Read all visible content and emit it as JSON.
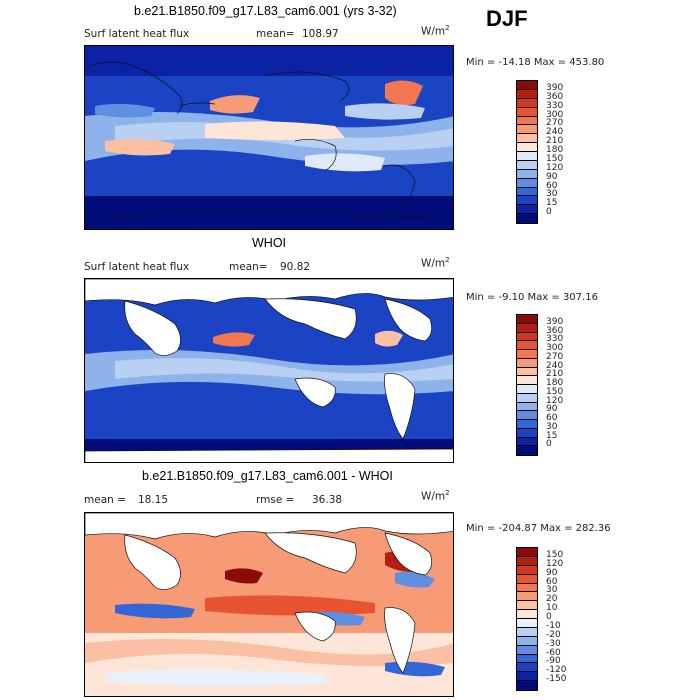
{
  "season": "DJF",
  "panels": [
    {
      "title": "b.e21.B1850.f09_g17.L83_cam6.001 (yrs 3-32)",
      "left_label": "Surf latent heat flux",
      "stat_label": "mean=",
      "stat_value": "108.97",
      "unit": "W/m",
      "minmax": "Min = -14.18 Max = 453.80",
      "colorbar_levels": [
        "390",
        "360",
        "330",
        "300",
        "270",
        "240",
        "210",
        "180",
        "150",
        "120",
        "90",
        "60",
        "30",
        "15",
        "0"
      ],
      "colorbar_colors": [
        "#8b0a0a",
        "#b41e12",
        "#d2361e",
        "#e8542f",
        "#f27650",
        "#f79a76",
        "#fbc0a3",
        "#fde6d8",
        "#dfe9f8",
        "#b8d0f2",
        "#8eb2ea",
        "#5f8fe0",
        "#3366d6",
        "#1a44c4",
        "#0a22a3",
        "#000c7a"
      ]
    },
    {
      "title": "WHOI",
      "left_label": "Surf latent heat flux",
      "stat_label": "mean=",
      "stat_value": "90.82",
      "unit": "W/m",
      "minmax": "Min = -9.10 Max = 307.16",
      "colorbar_levels": [
        "390",
        "360",
        "330",
        "300",
        "270",
        "240",
        "210",
        "180",
        "150",
        "120",
        "90",
        "60",
        "30",
        "15",
        "0"
      ],
      "colorbar_colors": [
        "#8b0a0a",
        "#b41e12",
        "#d2361e",
        "#e8542f",
        "#f27650",
        "#f79a76",
        "#fbc0a3",
        "#fde6d8",
        "#dfe9f8",
        "#b8d0f2",
        "#8eb2ea",
        "#5f8fe0",
        "#3366d6",
        "#1a44c4",
        "#0a22a3",
        "#000c7a"
      ]
    },
    {
      "title": "b.e21.B1850.f09_g17.L83_cam6.001 - WHOI",
      "left_label": "mean =",
      "stat_label": "rmse =",
      "left_value": "18.15",
      "stat_value": "36.38",
      "unit": "W/m",
      "minmax": "Min = -204.87 Max = 282.36",
      "colorbar_levels": [
        "150",
        "120",
        "90",
        "60",
        "30",
        "20",
        "10",
        "0",
        "-10",
        "-20",
        "-30",
        "-60",
        "-90",
        "-120",
        "-150"
      ],
      "colorbar_colors": [
        "#8b0a0a",
        "#b41e12",
        "#d2361e",
        "#e8542f",
        "#f27650",
        "#f79a76",
        "#fbc0a3",
        "#fde6d8",
        "#e8f0fb",
        "#b8d0f2",
        "#8eb2ea",
        "#5f8fe0",
        "#3366d6",
        "#1a44c4",
        "#0a22a3",
        "#000c7a"
      ]
    }
  ]
}
